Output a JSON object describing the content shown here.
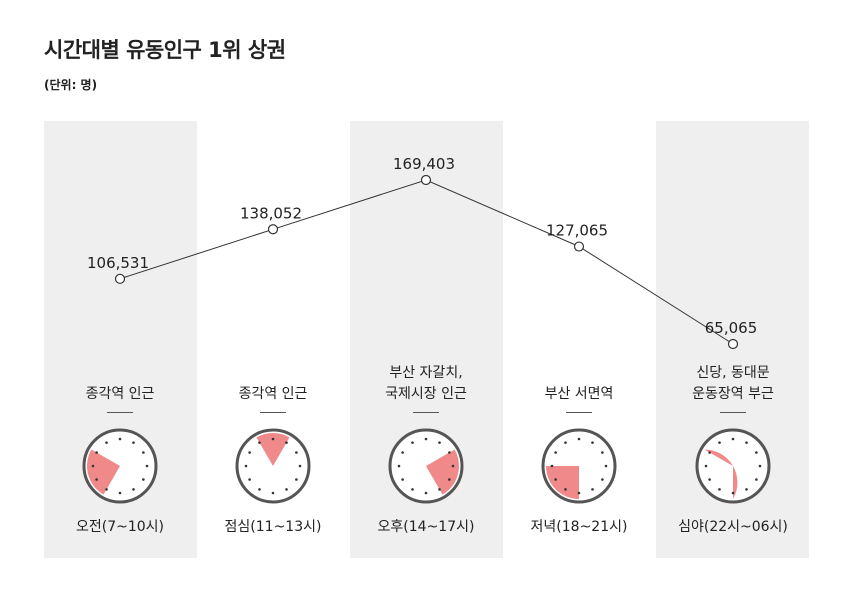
{
  "title": "시간대별 유동인구 1위 상권",
  "unit": "(단위: 명)",
  "chart_data": {
    "type": "line",
    "title": "시간대별 유동인구 1위 상권",
    "ylabel": "(단위: 명)",
    "categories": [
      "오전(7~10시)",
      "점심(11~13시)",
      "오후(14~17시)",
      "저녁(18~21시)",
      "심야(22시~06시)"
    ],
    "series": [
      {
        "values": [
          106531,
          138052,
          169403,
          127065,
          65065
        ]
      }
    ],
    "value_labels": [
      "106,531",
      "138,052",
      "169,403",
      "127,065",
      "65,065"
    ],
    "places": [
      [
        "종각역 인근"
      ],
      [
        "종각역 인근"
      ],
      [
        "부산 자갈치,",
        "국제시장 인근"
      ],
      [
        "부산 서면역"
      ],
      [
        "신당, 동대문",
        "운동장역 부근"
      ]
    ],
    "clock_hours": [
      [
        7,
        10
      ],
      [
        11,
        13
      ],
      [
        14,
        17
      ],
      [
        18,
        21
      ],
      [
        22,
        6
      ]
    ],
    "ylim": [
      0,
      200000
    ],
    "grid": false
  },
  "colors": {
    "line": "#333333",
    "band": "#efefef",
    "clock_fill": "#f08a8a",
    "clock_ring": "#555555"
  }
}
